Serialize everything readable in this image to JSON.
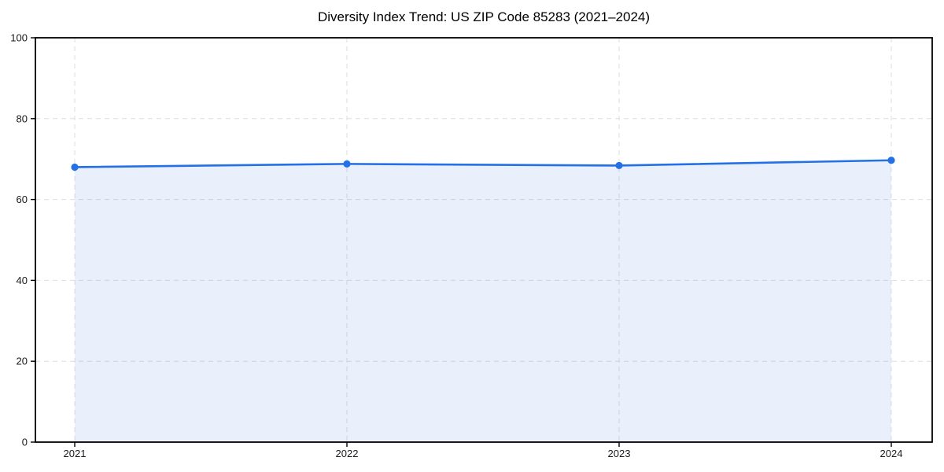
{
  "chart_data": {
    "type": "area",
    "title": "Diversity Index Trend: US ZIP Code 85283 (2021–2024)",
    "categories": [
      "2021",
      "2022",
      "2023",
      "2024"
    ],
    "series": [
      {
        "name": "Diversity Index",
        "values": [
          68.0,
          68.8,
          68.4,
          69.7
        ]
      }
    ],
    "xlabel": "",
    "ylabel": "",
    "ylim": [
      0,
      100
    ],
    "yticks": [
      0,
      20,
      40,
      60,
      80,
      100
    ],
    "grid": true,
    "grid_style": "dashed",
    "legend_position": "none",
    "colors": {
      "line": "#2470e6",
      "marker": "#2470e6",
      "fill": "rgba(36, 112, 230, 0.10)",
      "grid": "#dedede",
      "axis": "#000000",
      "tick_text": "#1a1a1a",
      "background": "#ffffff"
    }
  }
}
